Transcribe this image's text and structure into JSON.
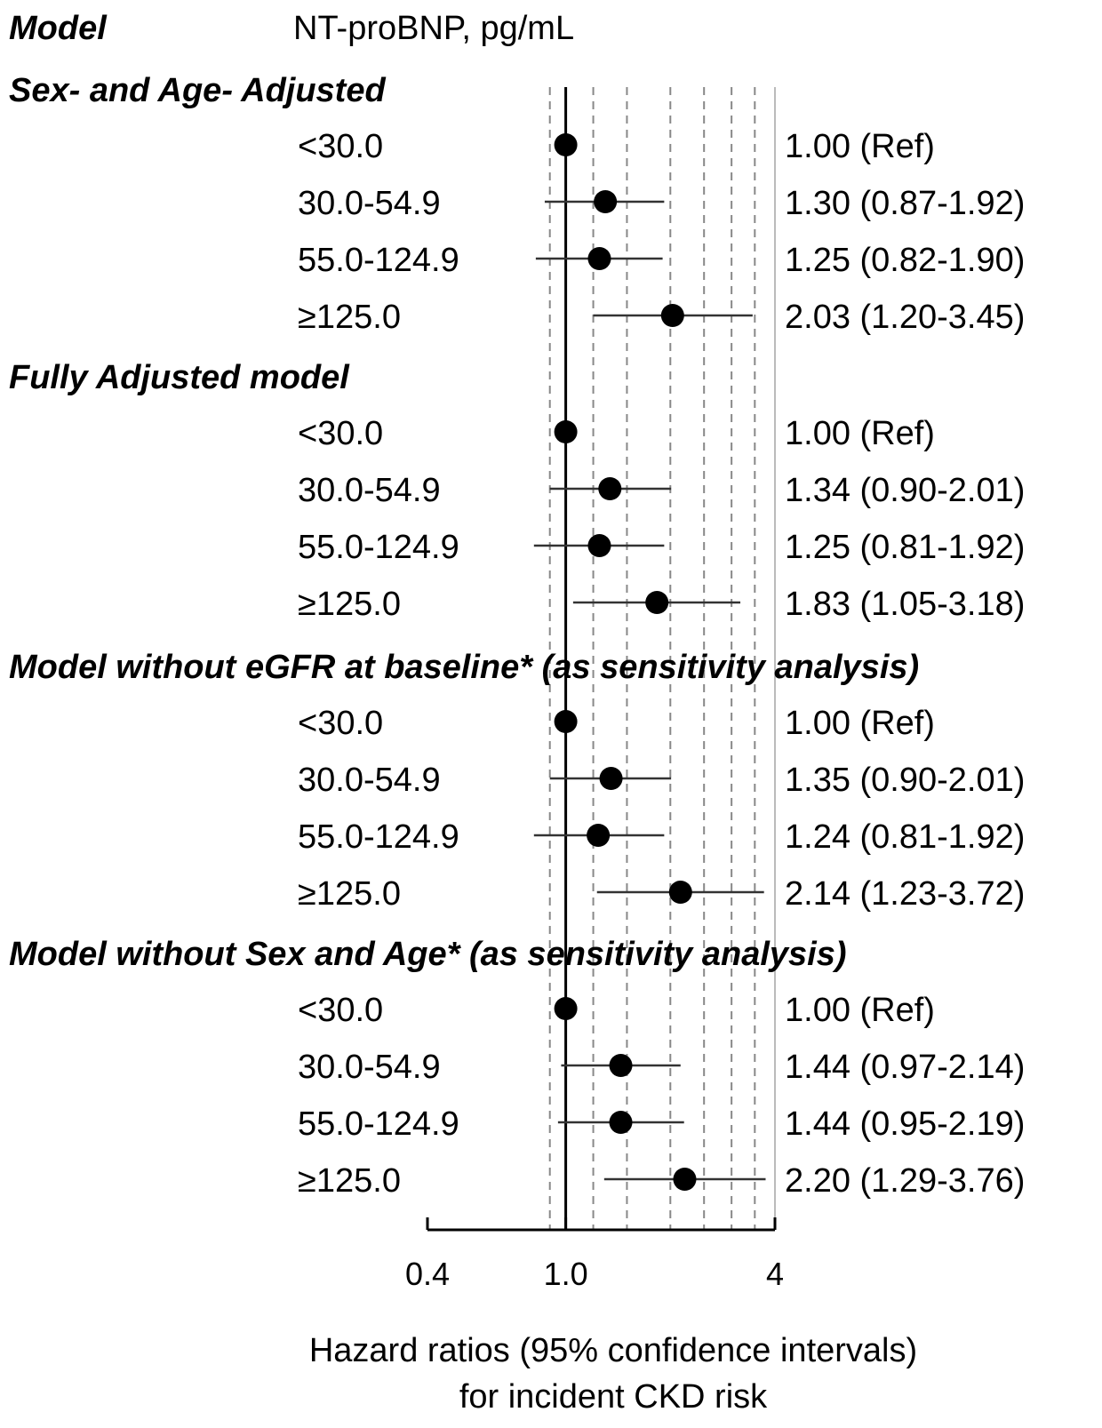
{
  "chart_data": {
    "type": "forest",
    "header": {
      "model_label": "Model",
      "exposure_label": "NT-proBNP, pg/mL"
    },
    "scale": "log",
    "xlim": [
      0.4,
      4
    ],
    "reference_line": 1.0,
    "gridlines": [
      0.9,
      1.2,
      1.5,
      2.0,
      2.5,
      3.0,
      3.5
    ],
    "x_ticks": [
      "0.4",
      "1.0",
      "4"
    ],
    "xlabel": [
      "Hazard ratios (95% confidence intervals)",
      "for incident CKD risk"
    ],
    "groups": [
      {
        "title": "Sex- and Age- Adjusted",
        "rows": [
          {
            "category": "<30.0",
            "hr": 1.0,
            "lo": null,
            "hi": null,
            "label": "1.00 (Ref)"
          },
          {
            "category": "30.0-54.9",
            "hr": 1.3,
            "lo": 0.87,
            "hi": 1.92,
            "label": "1.30 (0.87-1.92)"
          },
          {
            "category": "55.0-124.9",
            "hr": 1.25,
            "lo": 0.82,
            "hi": 1.9,
            "label": "1.25 (0.82-1.90)"
          },
          {
            "category": "≥125.0",
            "hr": 2.03,
            "lo": 1.2,
            "hi": 3.45,
            "label": "2.03 (1.20-3.45)"
          }
        ]
      },
      {
        "title": "Fully Adjusted model",
        "rows": [
          {
            "category": "<30.0",
            "hr": 1.0,
            "lo": null,
            "hi": null,
            "label": "1.00 (Ref)"
          },
          {
            "category": "30.0-54.9",
            "hr": 1.34,
            "lo": 0.9,
            "hi": 2.01,
            "label": "1.34 (0.90-2.01)"
          },
          {
            "category": "55.0-124.9",
            "hr": 1.25,
            "lo": 0.81,
            "hi": 1.92,
            "label": "1.25 (0.81-1.92)"
          },
          {
            "category": "≥125.0",
            "hr": 1.83,
            "lo": 1.05,
            "hi": 3.18,
            "label": "1.83 (1.05-3.18)"
          }
        ]
      },
      {
        "title": "Model without eGFR at baseline* (as sensitivity analysis)",
        "rows": [
          {
            "category": "<30.0",
            "hr": 1.0,
            "lo": null,
            "hi": null,
            "label": "1.00 (Ref)"
          },
          {
            "category": "30.0-54.9",
            "hr": 1.35,
            "lo": 0.9,
            "hi": 2.01,
            "label": "1.35 (0.90-2.01)"
          },
          {
            "category": "55.0-124.9",
            "hr": 1.24,
            "lo": 0.81,
            "hi": 1.92,
            "label": "1.24 (0.81-1.92)"
          },
          {
            "category": "≥125.0",
            "hr": 2.14,
            "lo": 1.23,
            "hi": 3.72,
            "label": "2.14 (1.23-3.72)"
          }
        ]
      },
      {
        "title": "Model without Sex and Age* (as sensitivity analysis)",
        "rows": [
          {
            "category": "<30.0",
            "hr": 1.0,
            "lo": null,
            "hi": null,
            "label": "1.00 (Ref)"
          },
          {
            "category": "30.0-54.9",
            "hr": 1.44,
            "lo": 0.97,
            "hi": 2.14,
            "label": "1.44 (0.97-2.14)"
          },
          {
            "category": "55.0-124.9",
            "hr": 1.44,
            "lo": 0.95,
            "hi": 2.19,
            "label": "1.44 (0.95-2.19)"
          },
          {
            "category": "≥125.0",
            "hr": 2.2,
            "lo": 1.29,
            "hi": 3.76,
            "label": "2.20 (1.29-3.76)"
          }
        ]
      }
    ],
    "colors": {
      "marker": "#000000",
      "ci_line": "#333333",
      "gridline": "#888888",
      "reference_line": "#000000",
      "axis": "#000000",
      "right_border": "#bbbbbb"
    }
  }
}
